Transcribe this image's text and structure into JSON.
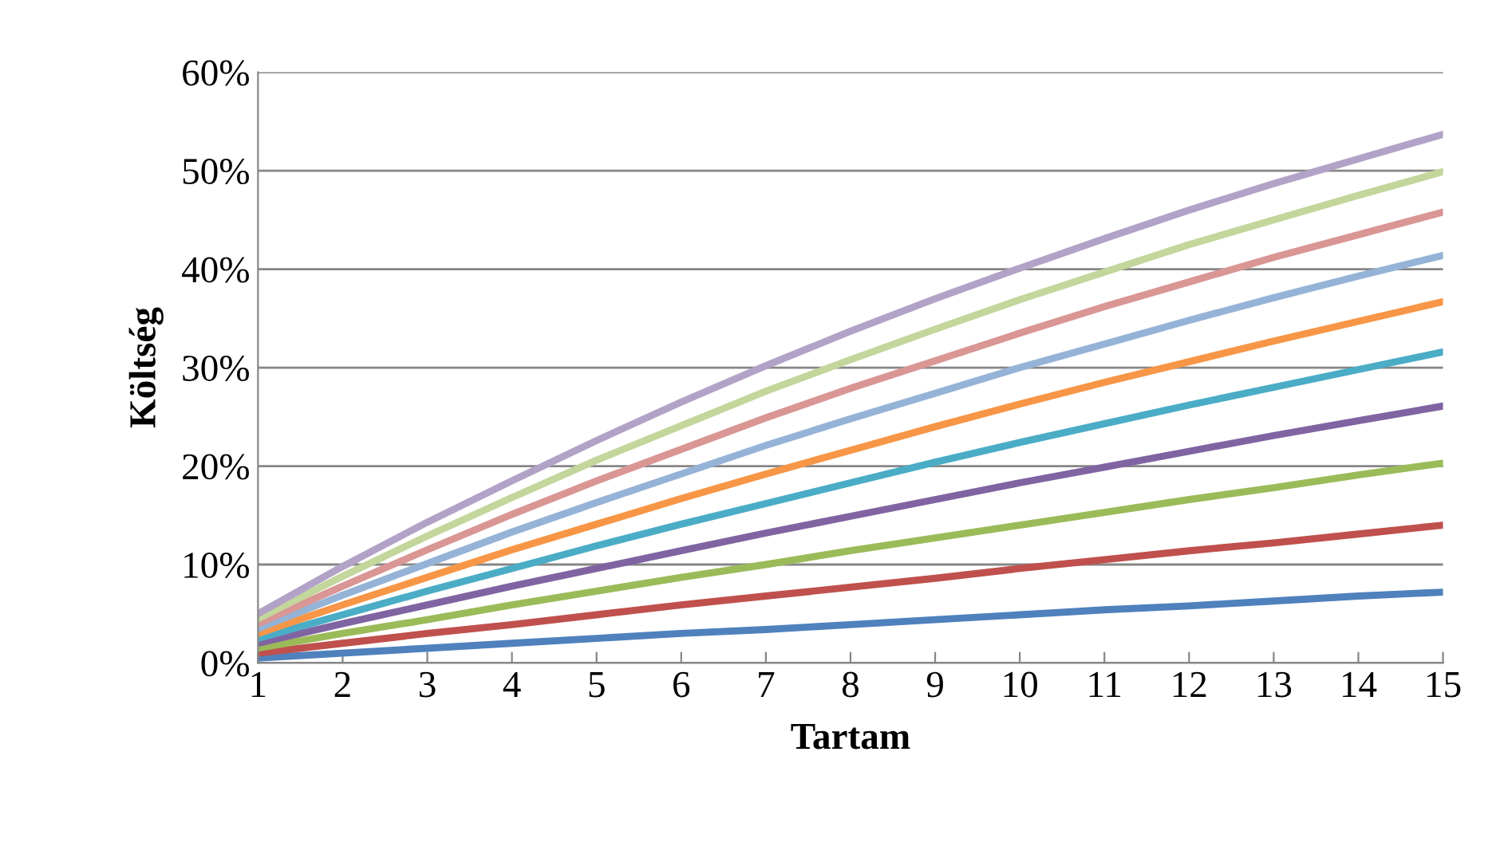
{
  "chart_data": {
    "type": "line",
    "xlabel": "Tartam",
    "ylabel": "Költség",
    "categories": [
      "1",
      "2",
      "3",
      "4",
      "5",
      "6",
      "7",
      "8",
      "9",
      "10",
      "11",
      "12",
      "13",
      "14",
      "15"
    ],
    "series": [
      {
        "color": "#4f81bd",
        "values": [
          0.5,
          1.0,
          1.5,
          2.0,
          2.5,
          3.0,
          3.4,
          3.9,
          4.4,
          4.9,
          5.4,
          5.8,
          6.3,
          6.8,
          7.2
        ]
      },
      {
        "color": "#c0504d",
        "values": [
          1.0,
          2.0,
          3.0,
          3.9,
          4.9,
          5.9,
          6.8,
          7.7,
          8.6,
          9.6,
          10.5,
          11.4,
          12.2,
          13.1,
          14.0
        ]
      },
      {
        "color": "#9bbb59",
        "values": [
          1.5,
          3.0,
          4.4,
          5.9,
          7.3,
          8.7,
          10.0,
          11.4,
          12.7,
          14.0,
          15.3,
          16.6,
          17.8,
          19.1,
          20.3
        ]
      },
      {
        "color": "#8064a2",
        "values": [
          2.0,
          4.0,
          5.9,
          7.8,
          9.6,
          11.4,
          13.2,
          14.9,
          16.6,
          18.3,
          19.9,
          21.5,
          23.1,
          24.6,
          26.1
        ]
      },
      {
        "color": "#4bacc6",
        "values": [
          2.5,
          4.9,
          7.3,
          9.6,
          11.9,
          14.1,
          16.2,
          18.3,
          20.4,
          22.4,
          24.3,
          26.2,
          28.0,
          29.8,
          31.6
        ]
      },
      {
        "color": "#f79646",
        "values": [
          3.0,
          5.9,
          8.7,
          11.5,
          14.1,
          16.7,
          19.2,
          21.6,
          24.0,
          26.3,
          28.5,
          30.6,
          32.7,
          34.7,
          36.7
        ]
      },
      {
        "color": "#95b3d7",
        "values": [
          3.5,
          6.9,
          10.1,
          13.3,
          16.3,
          19.2,
          22.1,
          24.8,
          27.4,
          30.0,
          32.4,
          34.8,
          37.1,
          39.3,
          41.4
        ]
      },
      {
        "color": "#d99694",
        "values": [
          4.0,
          7.8,
          11.5,
          15.1,
          18.5,
          21.7,
          24.9,
          27.9,
          30.7,
          33.5,
          36.2,
          38.7,
          41.2,
          43.5,
          45.8
        ]
      },
      {
        "color": "#c3d69b",
        "values": [
          4.5,
          8.8,
          12.9,
          16.8,
          20.6,
          24.1,
          27.6,
          30.8,
          33.9,
          36.9,
          39.7,
          42.5,
          45.0,
          47.5,
          49.9
        ]
      },
      {
        "color": "#b3a2c7",
        "values": [
          5.0,
          9.8,
          14.3,
          18.5,
          22.6,
          26.5,
          30.2,
          33.7,
          37.0,
          40.1,
          43.1,
          46.0,
          48.7,
          51.2,
          53.7
        ]
      }
    ],
    "ylim": [
      0,
      60
    ],
    "yticks": [
      {
        "value": 0,
        "label": "0%"
      },
      {
        "value": 10,
        "label": "10%"
      },
      {
        "value": 20,
        "label": "20%"
      },
      {
        "value": 30,
        "label": "30%"
      },
      {
        "value": 40,
        "label": "40%"
      },
      {
        "value": 50,
        "label": "50%"
      },
      {
        "value": 60,
        "label": "60%"
      }
    ],
    "grid": "y",
    "marker": "none",
    "line_style": "solid"
  }
}
